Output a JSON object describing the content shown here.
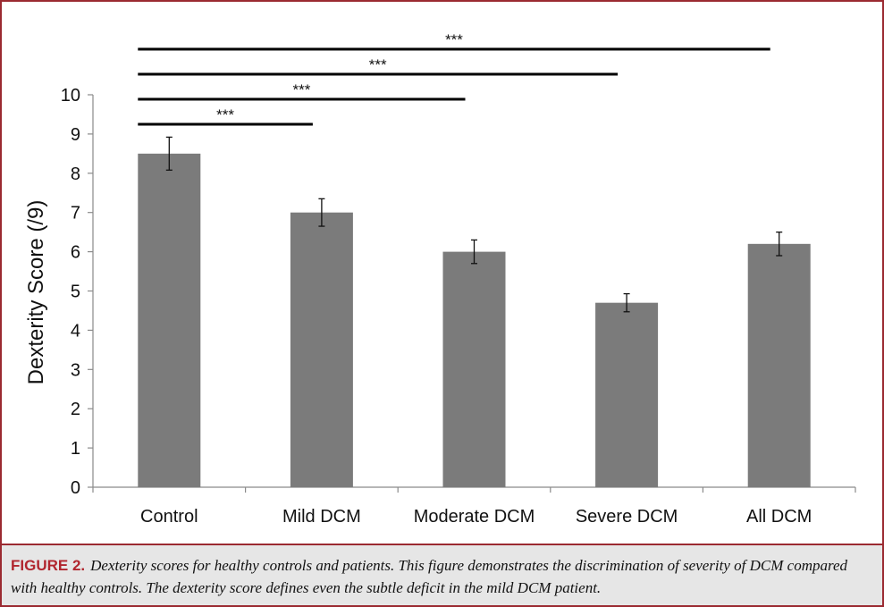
{
  "caption": {
    "label": "FIGURE 2.",
    "text": "Dexterity scores for healthy controls and patients. This figure demonstrates the discrimination of severity of DCM compared with healthy controls. The dexterity score defines even the subtle deficit in the mild DCM patient."
  },
  "colors": {
    "bar": "#7b7b7b",
    "frame_border": "#9b2a31",
    "caption_label": "#b1262e",
    "caption_bg": "#e6e6e6"
  },
  "chart_data": {
    "type": "bar",
    "categories": [
      "Control",
      "Mild DCM",
      "Moderate DCM",
      "Severe DCM",
      "All DCM"
    ],
    "values": [
      8.5,
      7.0,
      6.0,
      4.7,
      6.2
    ],
    "error": [
      0.42,
      0.35,
      0.3,
      0.23,
      0.3
    ],
    "ylabel": "Dexterity Score (/9)",
    "xlabel": "",
    "ylim": [
      0,
      10
    ],
    "yticks": [
      0,
      1,
      2,
      3,
      4,
      5,
      6,
      7,
      8,
      9,
      10
    ],
    "grid": false,
    "legend": "none",
    "significance": [
      {
        "from": "Control",
        "to": "Mild DCM",
        "label": "***"
      },
      {
        "from": "Control",
        "to": "Moderate DCM",
        "label": "***"
      },
      {
        "from": "Control",
        "to": "Severe DCM",
        "label": "***"
      },
      {
        "from": "Control",
        "to": "All DCM",
        "label": "***"
      }
    ]
  }
}
